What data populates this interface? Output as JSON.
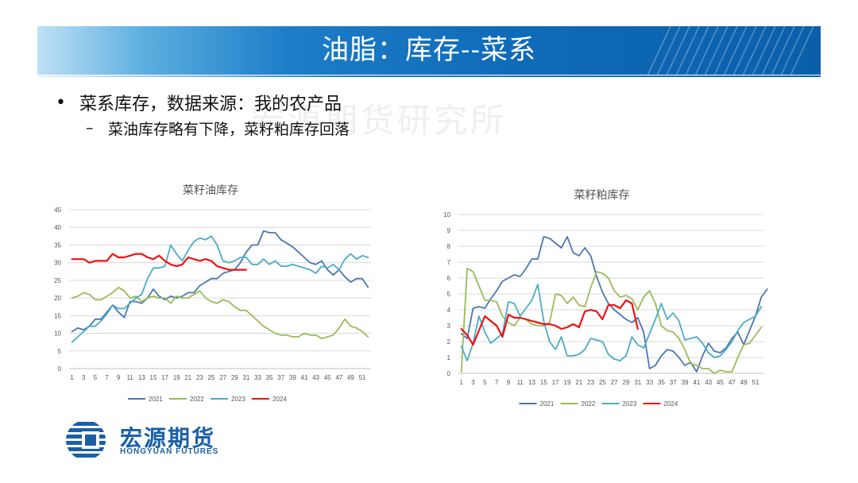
{
  "header": {
    "title": "油脂：库存--菜系"
  },
  "watermark": "宏源期货研究所",
  "bullets": {
    "main": "菜系库存，数据来源：我的农产品",
    "sub": "菜油库存略有下降，菜籽粕库存回落"
  },
  "logo": {
    "name_cn": "宏源期货",
    "name_en": "HONGYUAN FUTURES"
  },
  "colors": {
    "2021": "#4a77b4",
    "2022": "#9bbb59",
    "2023": "#4bacc6",
    "2024": "#ee1111"
  },
  "chart_data": [
    {
      "type": "line",
      "title": "菜籽油库存",
      "ylim": [
        0,
        45
      ],
      "yticks": [
        0,
        5,
        10,
        15,
        20,
        25,
        30,
        35,
        40,
        45
      ],
      "xticks": [
        "1",
        "3",
        "5",
        "7",
        "9",
        "11",
        "13",
        "15",
        "17",
        "19",
        "21",
        "23",
        "25",
        "27",
        "29",
        "31",
        "33",
        "35",
        "37",
        "39",
        "41",
        "43",
        "45",
        "47",
        "49",
        "51"
      ],
      "grid": true,
      "legend": "bottom",
      "series": [
        {
          "name": "2021",
          "values": [
            10.5,
            11.5,
            11,
            12,
            14,
            14,
            16,
            18,
            16,
            14.5,
            19,
            19,
            18.5,
            20,
            22.5,
            20.5,
            19.5,
            20.5,
            20,
            20.5,
            21.5,
            21.5,
            23.5,
            24.5,
            25.5,
            25.5,
            27,
            27.5,
            28,
            30,
            33,
            35,
            35,
            39,
            38.5,
            38.5,
            36.5,
            35.5,
            34.5,
            33,
            31.5,
            30,
            29.5,
            30.5,
            28,
            26.5,
            28,
            26,
            24.5,
            25.5,
            25.5,
            23
          ]
        },
        {
          "name": "2022",
          "values": [
            20,
            20.5,
            21.5,
            21,
            19.5,
            19.5,
            20.5,
            21.5,
            23,
            22,
            20,
            20.5,
            19,
            20,
            20.5,
            20,
            20,
            18.5,
            20.5,
            20,
            20,
            21,
            22,
            20,
            19,
            18.5,
            19.5,
            19,
            17.5,
            16.5,
            16.5,
            15,
            13.5,
            12,
            11,
            10,
            9.5,
            9.5,
            9,
            9,
            10,
            9.5,
            9.5,
            8.5,
            9,
            9.5,
            11.5,
            14,
            12,
            11.5,
            10.5,
            9
          ]
        },
        {
          "name": "2023",
          "values": [
            7.5,
            9,
            10.5,
            12,
            12,
            13.5,
            15.5,
            18,
            17,
            17,
            18.5,
            20,
            21,
            25.5,
            28.5,
            28.5,
            29,
            35,
            32.5,
            30.5,
            33.5,
            36,
            37,
            36.5,
            37.5,
            35,
            30.5,
            30,
            30.5,
            31.5,
            31.5,
            29.5,
            29.5,
            31,
            29.5,
            30.5,
            29,
            29,
            29.5,
            29,
            28.5,
            28,
            27,
            29,
            28.5,
            29.5,
            28,
            31,
            32.5,
            31,
            32,
            31.5
          ]
        },
        {
          "name": "2024",
          "values": [
            31,
            31,
            31,
            30,
            30.5,
            30.5,
            30.5,
            32.5,
            31.5,
            31.5,
            32,
            32.5,
            32.5,
            31.5,
            31,
            32,
            30.5,
            29.5,
            29,
            29.5,
            31.5,
            31,
            30.5,
            31,
            30.5,
            29,
            28.5,
            28,
            28,
            28,
            28
          ]
        }
      ]
    },
    {
      "type": "line",
      "title": "菜籽粕库存",
      "ylim": [
        0,
        10
      ],
      "yticks": [
        0,
        1,
        2,
        3,
        4,
        5,
        6,
        7,
        8,
        9,
        10
      ],
      "xticks": [
        "1",
        "3",
        "5",
        "7",
        "9",
        "11",
        "13",
        "15",
        "17",
        "19",
        "21",
        "23",
        "25",
        "27",
        "29",
        "31",
        "33",
        "35",
        "37",
        "39",
        "41",
        "43",
        "45",
        "47",
        "49",
        "51"
      ],
      "grid": true,
      "legend": "bottom",
      "series": [
        {
          "name": "2021",
          "values": [
            2.5,
            2.2,
            4.1,
            4.2,
            4.1,
            4.7,
            5.2,
            5.8,
            6.0,
            6.2,
            6.1,
            6.6,
            7.2,
            7.2,
            8.6,
            8.5,
            8.2,
            7.9,
            8.6,
            7.6,
            7.4,
            7.9,
            7.4,
            6.1,
            5.1,
            4.4,
            4.0,
            3.7,
            3.4,
            3.2,
            3.5,
            2.6,
            0.3,
            0.5,
            1.1,
            1.5,
            1.4,
            1.0,
            0.5,
            0.7,
            0.1,
            1.1,
            1.9,
            1.4,
            1.3,
            1.6,
            2.2,
            2.6,
            1.8,
            2.7,
            3.6,
            4.8,
            5.3
          ]
        },
        {
          "name": "2022",
          "values": [
            0.1,
            6.6,
            6.4,
            5.5,
            4.6,
            4.6,
            4.5,
            3.6,
            3.2,
            3.0,
            3.5,
            3.4,
            3.1,
            3.0,
            3.0,
            3.2,
            5.0,
            4.9,
            4.4,
            4.8,
            4.3,
            4.2,
            5.4,
            6.4,
            6.3,
            6.0,
            5.2,
            4.8,
            4.9,
            4.7,
            4.0,
            4.8,
            5.2,
            4.4,
            3.0,
            2.7,
            2.6,
            2.2,
            1.5,
            0.6,
            0.5,
            0.3,
            0.3,
            0.0,
            0.2,
            0.1,
            0.1,
            1.0,
            1.8,
            1.9,
            2.4,
            2.9
          ]
        },
        {
          "name": "2023",
          "values": [
            1.7,
            0.8,
            1.9,
            3.6,
            2.6,
            1.9,
            2.2,
            2.5,
            4.5,
            4.4,
            3.6,
            4.1,
            4.6,
            5.6,
            3.3,
            2.0,
            1.5,
            2.3,
            1.1,
            1.1,
            1.2,
            1.5,
            2.2,
            2.1,
            2.0,
            1.2,
            0.9,
            0.8,
            1.1,
            2.3,
            1.8,
            1.6,
            2.5,
            3.4,
            4.4,
            3.4,
            3.8,
            3.3,
            2.1,
            2.2,
            2.3,
            1.9,
            1.3,
            1.0,
            1.1,
            1.5,
            2.0,
            2.7,
            3.2,
            3.4,
            3.6,
            4.2
          ]
        },
        {
          "name": "2024",
          "values": [
            2.8,
            2.4,
            1.8,
            2.7,
            3.6,
            3.3,
            3.0,
            2.3,
            3.7,
            3.5,
            3.5,
            3.4,
            3.3,
            3.2,
            3.1,
            3.1,
            3.0,
            2.8,
            2.9,
            3.1,
            2.9,
            3.9,
            4.0,
            3.9,
            3.4,
            4.3,
            4.3,
            4.1,
            4.6,
            4.4,
            2.8
          ]
        }
      ]
    }
  ]
}
